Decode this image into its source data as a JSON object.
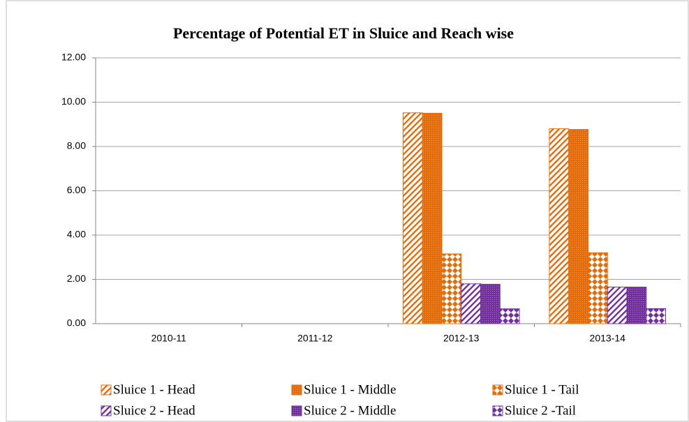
{
  "chart_data": {
    "type": "bar",
    "title": "Percentage of Potential ET in Sluice and Reach wise",
    "categories": [
      "2010-11",
      "2011-12",
      "2012-13",
      "2013-14"
    ],
    "series": [
      {
        "name": "Sluice 1 - Head",
        "color": "#e46c0a",
        "pattern": "hatch",
        "values": [
          0,
          0,
          9.52,
          8.8
        ]
      },
      {
        "name": "Sluice 1 - Middle",
        "color": "#e46c0a",
        "pattern": "dots",
        "values": [
          0,
          0,
          9.5,
          8.77
        ]
      },
      {
        "name": "Sluice 1 - Tail",
        "color": "#e46c0a",
        "pattern": "checker",
        "values": [
          0,
          0,
          3.15,
          3.2
        ]
      },
      {
        "name": "Sluice 2 - Head",
        "color": "#7030a0",
        "pattern": "hatch",
        "values": [
          0,
          0,
          1.8,
          1.65
        ]
      },
      {
        "name": "Sluice 2 - Middle",
        "color": "#7030a0",
        "pattern": "dots",
        "values": [
          0,
          0,
          1.78,
          1.65
        ]
      },
      {
        "name": "Sluice 2 -Tail",
        "color": "#7030a0",
        "pattern": "checker",
        "values": [
          0,
          0,
          0.67,
          0.68
        ]
      }
    ],
    "ylim": [
      0,
      12
    ],
    "yticks": [
      {
        "value": 0,
        "label": "0.00"
      },
      {
        "value": 2,
        "label": "2.00"
      },
      {
        "value": 4,
        "label": "4.00"
      },
      {
        "value": 6,
        "label": "6.00"
      },
      {
        "value": 8,
        "label": "8.00"
      },
      {
        "value": 10,
        "label": "10.00"
      },
      {
        "value": 12,
        "label": "12.00"
      }
    ],
    "grid": true,
    "legend": "bottom"
  }
}
